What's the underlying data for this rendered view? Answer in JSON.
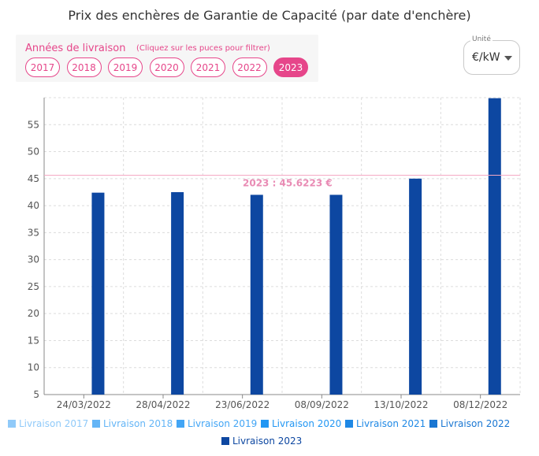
{
  "title": "Prix des enchères de Garantie de Capacité (par date d'enchère)",
  "filter": {
    "label": "Années de livraison",
    "hint": "(Cliquez sur les puces pour filtrer)",
    "chips": [
      {
        "label": "2017",
        "active": false
      },
      {
        "label": "2018",
        "active": false
      },
      {
        "label": "2019",
        "active": false
      },
      {
        "label": "2020",
        "active": false
      },
      {
        "label": "2021",
        "active": false
      },
      {
        "label": "2022",
        "active": false
      },
      {
        "label": "2023",
        "active": true
      }
    ]
  },
  "unit": {
    "caption": "Unité",
    "value": "€/kW"
  },
  "colors": {
    "accent": "#e6468a",
    "bar": "#0d47a1",
    "reference_line": "#f4a9c4",
    "grid": "#dcdcdc",
    "axis_text": "#555555"
  },
  "chart_data": {
    "type": "bar",
    "title": "Prix des enchères de Garantie de Capacité (par date d'enchère)",
    "xlabel": "",
    "ylabel": "",
    "categories": [
      "24/03/2022",
      "28/04/2022",
      "23/06/2022",
      "08/09/2022",
      "13/10/2022",
      "08/12/2022"
    ],
    "series": [
      {
        "name": "Livraison 2023",
        "values": [
          42.4,
          42.5,
          42.0,
          42.0,
          45.0,
          59.9
        ]
      }
    ],
    "ylim": [
      5,
      60
    ],
    "yticks": [
      5,
      10,
      15,
      20,
      25,
      30,
      35,
      40,
      45,
      50,
      55
    ],
    "grid": true,
    "reference_line": {
      "value": 45.6223,
      "label": "2023 : 45.6223 €"
    },
    "legend": {
      "placement": "bottom",
      "entries": [
        {
          "label": "Livraison 2017",
          "color": "#90caf9"
        },
        {
          "label": "Livraison 2018",
          "color": "#64b5f6"
        },
        {
          "label": "Livraison 2019",
          "color": "#42a5f5"
        },
        {
          "label": "Livraison 2020",
          "color": "#2196f3"
        },
        {
          "label": "Livraison 2021",
          "color": "#1e88e5"
        },
        {
          "label": "Livraison 2022",
          "color": "#1976d2"
        },
        {
          "label": "Livraison 2023",
          "color": "#0d47a1"
        }
      ]
    }
  }
}
